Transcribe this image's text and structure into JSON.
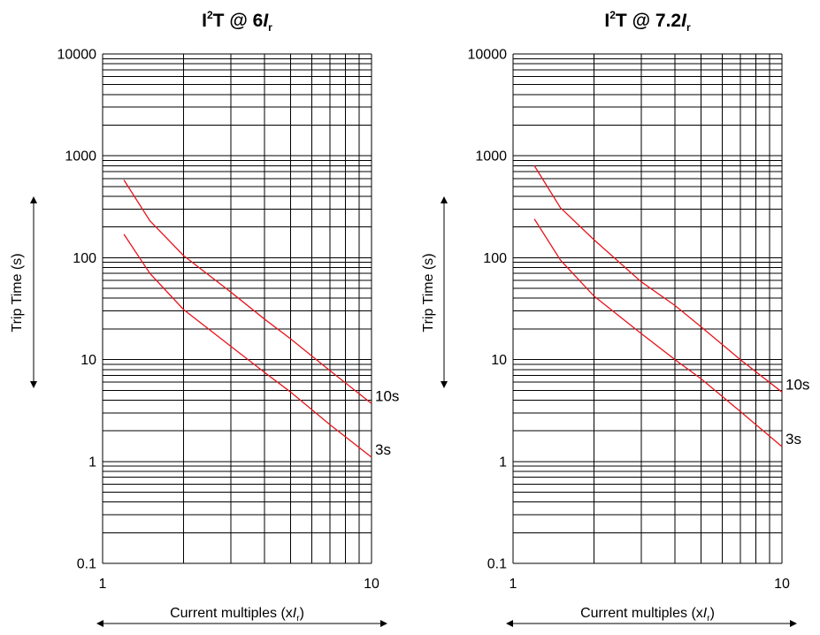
{
  "chart_data": [
    {
      "type": "line",
      "title": {
        "base": "I",
        "sup": "2",
        "mid": "T  @ 6",
        "var": "I",
        "sub": "r"
      },
      "xlabel": {
        "base": "Current multiples (x",
        "var": "I",
        "sub": "r",
        "end": ")"
      },
      "ylabel": "Trip Time (s)",
      "x_scale": "log",
      "y_scale": "log",
      "xlim": [
        1,
        10
      ],
      "ylim": [
        0.1,
        10000
      ],
      "x_ticks": [
        "1",
        "10"
      ],
      "y_ticks": [
        "0.1",
        "1",
        "10",
        "100",
        "1000",
        "10000"
      ],
      "grid": true,
      "line_color": "#e8141b",
      "series": [
        {
          "label": "10s",
          "x": [
            1.2,
            1.5,
            2,
            3,
            4,
            5,
            7,
            10
          ],
          "y": [
            580,
            230,
            105,
            46,
            25,
            16,
            7.8,
            3.7
          ]
        },
        {
          "label": "3s",
          "x": [
            1.2,
            1.5,
            2,
            3,
            4,
            5,
            7,
            10
          ],
          "y": [
            170,
            70,
            31,
            13.5,
            7.5,
            4.8,
            2.3,
            1.1
          ]
        }
      ]
    },
    {
      "type": "line",
      "title": {
        "base": "I",
        "sup": "2",
        "mid": "T  @ 7.2",
        "var": "I",
        "sub": "r"
      },
      "xlabel": {
        "base": "Current multiples (x",
        "var": "I",
        "sub": "r",
        "end": ")"
      },
      "ylabel": "Trip Time (s)",
      "x_scale": "log",
      "y_scale": "log",
      "xlim": [
        1,
        10
      ],
      "ylim": [
        0.1,
        10000
      ],
      "x_ticks": [
        "1",
        "10"
      ],
      "y_ticks": [
        "0.1",
        "1",
        "10",
        "100",
        "1000",
        "10000"
      ],
      "grid": true,
      "line_color": "#e8141b",
      "series": [
        {
          "label": "10s",
          "x": [
            1.2,
            1.5,
            2,
            3,
            4,
            5,
            7,
            10
          ],
          "y": [
            800,
            310,
            150,
            58,
            34,
            21,
            10,
            4.8
          ]
        },
        {
          "label": "3s",
          "x": [
            1.2,
            1.5,
            2,
            3,
            4,
            5,
            7,
            10
          ],
          "y": [
            240,
            95,
            42,
            18,
            10,
            6.5,
            3.1,
            1.4
          ]
        }
      ]
    }
  ]
}
